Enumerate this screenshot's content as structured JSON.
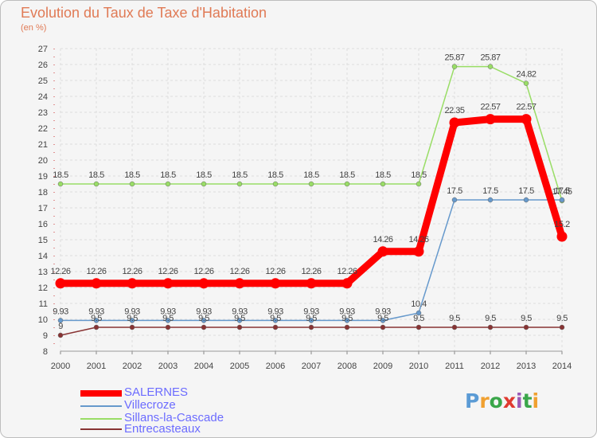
{
  "header": {
    "title": "Evolution du Taux de Taxe d'Habitation",
    "subtitle": "(en %)"
  },
  "logo": {
    "text": "Proxiti",
    "colors": [
      "#5b9bd5",
      "#f0a030",
      "#3aa64a",
      "#e03a30",
      "#9b59b6",
      "#3aa64a",
      "#f0a030"
    ]
  },
  "chart_data": {
    "type": "line",
    "title": "Evolution du Taux de Taxe d'Habitation",
    "ylabel": "(en %)",
    "xlabel": "",
    "x": [
      "2000",
      "2001",
      "2002",
      "2003",
      "2004",
      "2005",
      "2006",
      "2007",
      "2008",
      "2009",
      "2010",
      "2011",
      "2012",
      "2013",
      "2014"
    ],
    "ylim": [
      8,
      27
    ],
    "yticks": [
      "8",
      "9",
      "10",
      "11",
      "12",
      "13",
      "14",
      "15",
      "16",
      "17",
      "18",
      "19",
      "20",
      "21",
      "22",
      "23",
      "24",
      "25",
      "26",
      "27"
    ],
    "grid": true,
    "legend": "bottom-left",
    "series": [
      {
        "name": "SALERNES",
        "color": "#ff0000",
        "values": [
          12.26,
          12.26,
          12.26,
          12.26,
          12.26,
          12.26,
          12.26,
          12.26,
          12.26,
          14.26,
          14.26,
          22.35,
          22.57,
          22.57,
          15.2
        ],
        "labels": [
          "12.26",
          "12.26",
          "12.26",
          "12.26",
          "12.26",
          "12.26",
          "12.26",
          "12.26",
          "12.26",
          "14.26",
          "14.26",
          "22.35",
          "22.57",
          "22.57",
          "15.2"
        ]
      },
      {
        "name": "Villecroze",
        "color": "#6699cc",
        "values": [
          9.93,
          9.93,
          9.93,
          9.93,
          9.93,
          9.93,
          9.93,
          9.93,
          9.93,
          9.93,
          10.4,
          17.5,
          17.5,
          17.5,
          17.5
        ],
        "labels": [
          "9.93",
          "9.93",
          "9.93",
          "9.93",
          "9.93",
          "9.93",
          "9.93",
          "9.93",
          "9.93",
          "9.93",
          "10.4",
          "17.5",
          "17.5",
          "17.5",
          "17.5"
        ]
      },
      {
        "name": "Sillans-la-Cascade",
        "color": "#99dd66",
        "values": [
          18.5,
          18.5,
          18.5,
          18.5,
          18.5,
          18.5,
          18.5,
          18.5,
          18.5,
          18.5,
          18.5,
          25.87,
          25.87,
          24.82,
          17.45
        ],
        "labels": [
          "18.5",
          "18.5",
          "18.5",
          "18.5",
          "18.5",
          "18.5",
          "18.5",
          "18.5",
          "18.5",
          "18.5",
          "18.5",
          "25.87",
          "25.87",
          "24.82",
          "17.45"
        ]
      },
      {
        "name": "Entrecasteaux",
        "color": "#883333",
        "values": [
          9,
          9.5,
          9.5,
          9.5,
          9.5,
          9.5,
          9.5,
          9.5,
          9.5,
          9.5,
          9.5,
          9.5,
          9.5,
          9.5,
          9.5
        ],
        "labels": [
          "9",
          "9.5",
          "9.5",
          "9.5",
          "9.5",
          "9.5",
          "9.5",
          "9.5",
          "9.5",
          "9.5",
          "9.5",
          "9.5",
          "9.5",
          "9.5",
          "9.5"
        ]
      }
    ]
  }
}
